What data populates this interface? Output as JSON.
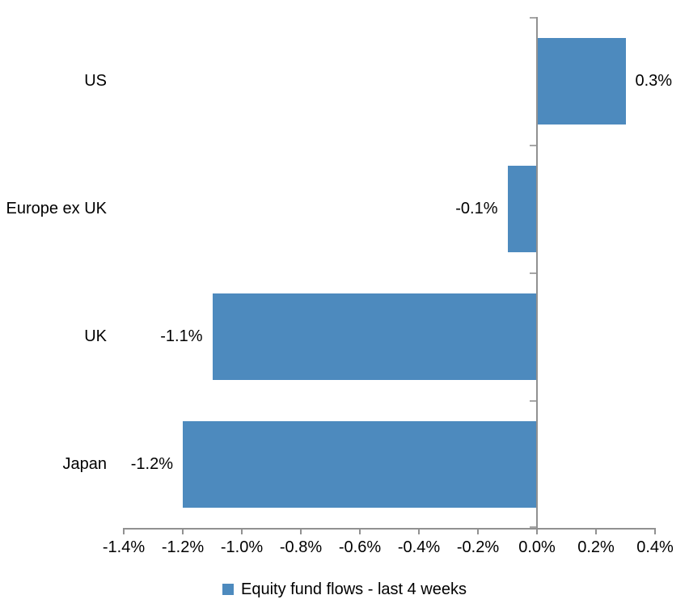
{
  "chart_data": {
    "type": "bar",
    "orientation": "horizontal",
    "title": "",
    "categories": [
      "US",
      "Europe ex UK",
      "UK",
      "Japan"
    ],
    "series": [
      {
        "name": "Equity fund flows - last 4 weeks",
        "values": [
          0.3,
          -0.1,
          -1.1,
          -1.2
        ],
        "data_labels": [
          "0.3%",
          "-0.1%",
          "-1.1%",
          "-1.2%"
        ],
        "color": "#4d8abe"
      }
    ],
    "xlim": [
      -1.4,
      0.4
    ],
    "x_tick_values": [
      -1.4,
      -1.2,
      -1.0,
      -0.8,
      -0.6,
      -0.4,
      -0.2,
      0.0,
      0.2,
      0.4
    ],
    "x_tick_labels": [
      "-1.4%",
      "-1.2%",
      "-1.0%",
      "-0.8%",
      "-0.6%",
      "-0.4%",
      "-0.2%",
      "0.0%",
      "0.2%",
      "0.4%"
    ],
    "grid": false,
    "legend_position": "bottom",
    "colors": {
      "bar": "#4d8abe",
      "axis_line": "#919191",
      "category_tick": "#a6a6a6",
      "text": "#000000",
      "background": "#ffffff"
    }
  }
}
